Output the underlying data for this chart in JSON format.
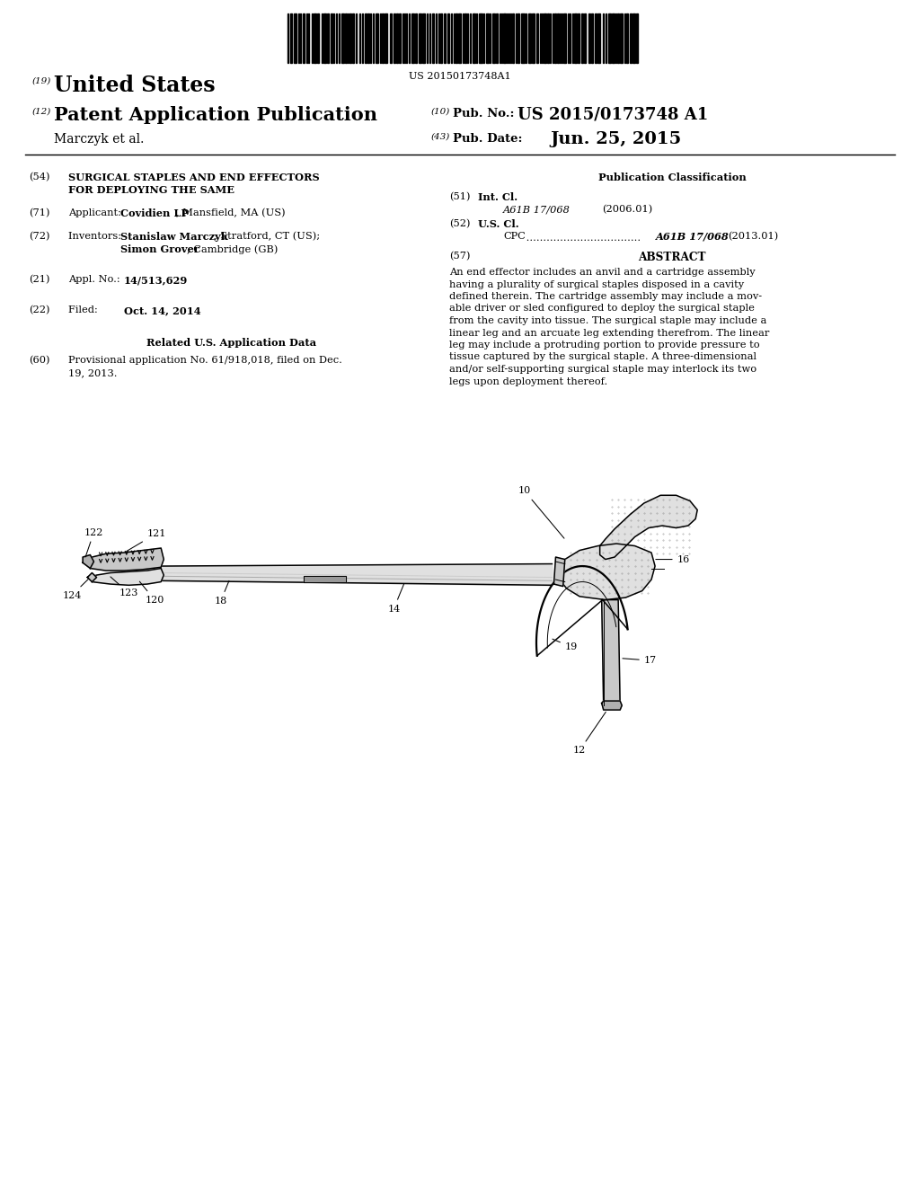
{
  "background_color": "#ffffff",
  "barcode_text": "US 20150173748A1",
  "header": {
    "line1_num": "(19)",
    "line1_text": "United States",
    "line2_num": "(12)",
    "line2_text": "Patent Application Publication",
    "line2_right_num": "(10)",
    "line2_right_label": "Pub. No.:",
    "line2_right_value": "US 2015/0173748 A1",
    "line3_left": "Marczyk et al.",
    "line3_right_num": "(43)",
    "line3_right_label": "Pub. Date:",
    "line3_right_value": "Jun. 25, 2015"
  },
  "left_col": {
    "item54_num": "(54)",
    "item54_title": "SURGICAL STAPLES AND END EFFECTORS",
    "item54_title2": "FOR DEPLOYING THE SAME",
    "item71_num": "(71)",
    "item71_label": "Applicant: ",
    "item71_bold": "Covidien LP",
    "item71_rest": ", Mansfield, MA (US)",
    "item72_num": "(72)",
    "item72_label": "Inventors: ",
    "item72_bold1": "Stanislaw Marczyk",
    "item72_rest1": ", Stratford, CT (US);",
    "item72_bold2": "Simon Grover",
    "item72_rest2": ", Cambridge (GB)",
    "item21_num": "(21)",
    "item21_label": "Appl. No.: ",
    "item21_bold": "14/513,629",
    "item22_num": "(22)",
    "item22_label": "Filed:     ",
    "item22_bold": "Oct. 14, 2014",
    "related_header": "Related U.S. Application Data",
    "item60_num": "(60)",
    "item60_line1": "Provisional application No. 61/918,018, filed on Dec.",
    "item60_line2": "19, 2013."
  },
  "right_col": {
    "pub_class_header": "Publication Classification",
    "item51_num": "(51)",
    "item51_label": "Int. Cl.",
    "item51_class": "A61B 17/068",
    "item51_year": "(2006.01)",
    "item52_num": "(52)",
    "item52_label": "U.S. Cl.",
    "item52_cpc_label": "CPC",
    "item52_dots": " ..................................",
    "item52_class": "A61B 17/068",
    "item52_year": "(2013.01)",
    "item57_num": "(57)",
    "item57_header": "ABSTRACT",
    "abstract_lines": [
      "An end effector includes an anvil and a cartridge assembly",
      "having a plurality of surgical staples disposed in a cavity",
      "defined therein. The cartridge assembly may include a mov-",
      "able driver or sled configured to deploy the surgical staple",
      "from the cavity into tissue. The surgical staple may include a",
      "linear leg and an arcuate leg extending therefrom. The linear",
      "leg may include a protruding portion to provide pressure to",
      "tissue captured by the surgical staple. A three-dimensional",
      "and/or self-supporting surgical staple may interlock its two",
      "legs upon deployment thereof."
    ]
  }
}
